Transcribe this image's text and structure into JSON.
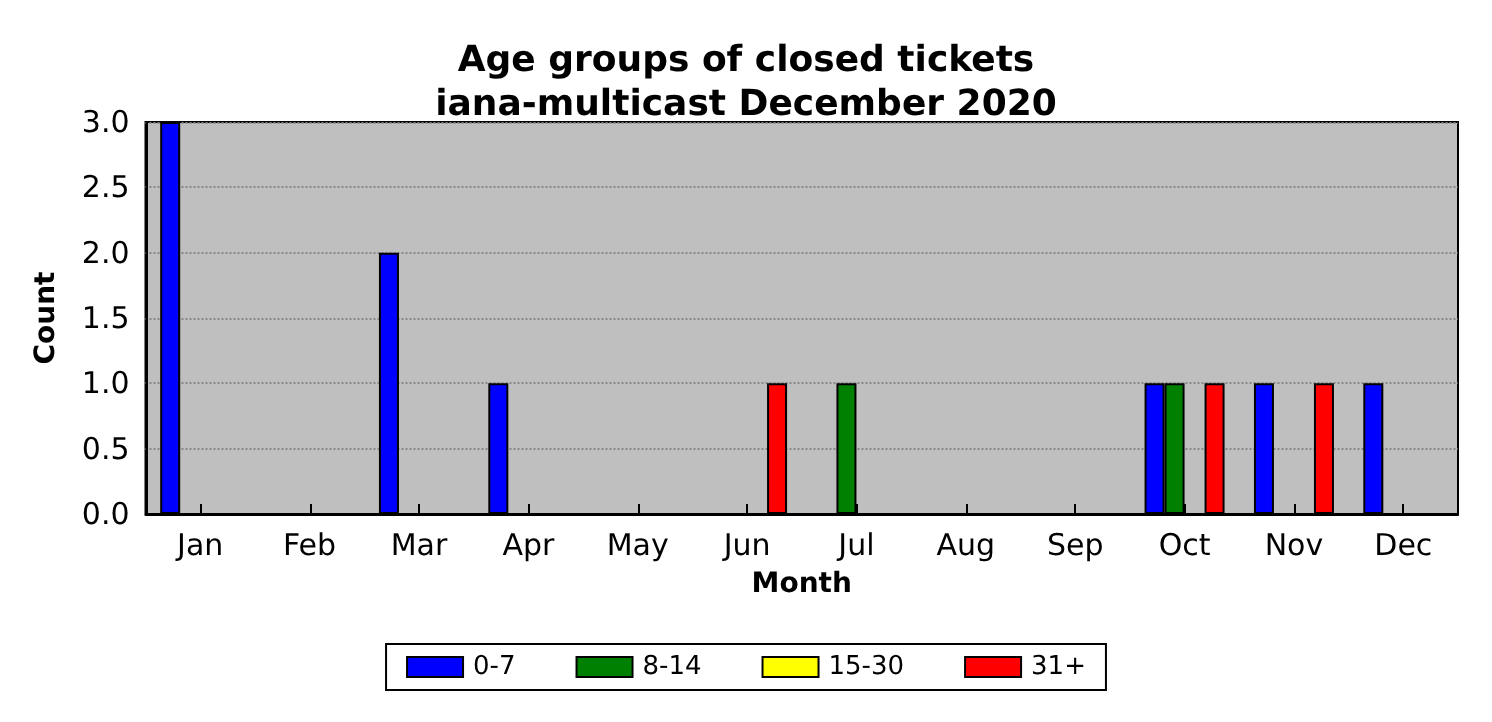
{
  "chart_data": {
    "type": "bar",
    "title": "Age groups of closed tickets\niana-multicast December 2020",
    "xlabel": "Month",
    "ylabel": "Count",
    "categories": [
      "Jan",
      "Feb",
      "Mar",
      "Apr",
      "May",
      "Jun",
      "Jul",
      "Aug",
      "Sep",
      "Oct",
      "Nov",
      "Dec"
    ],
    "series": [
      {
        "name": "0-7",
        "color": "#0000ff",
        "values": [
          3,
          0,
          2,
          1,
          0,
          0,
          0,
          0,
          0,
          1,
          1,
          1
        ]
      },
      {
        "name": "8-14",
        "color": "#008000",
        "values": [
          0,
          0,
          0,
          0,
          0,
          0,
          1,
          0,
          0,
          1,
          0,
          0
        ]
      },
      {
        "name": "15-30",
        "color": "#ffff00",
        "values": [
          0,
          0,
          0,
          0,
          0,
          0,
          0,
          0,
          0,
          0,
          0,
          0
        ]
      },
      {
        "name": "31+",
        "color": "#ff0000",
        "values": [
          0,
          0,
          0,
          0,
          0,
          1,
          0,
          0,
          0,
          1,
          1,
          0
        ]
      }
    ],
    "ylim": [
      0,
      3
    ],
    "yticks": [
      {
        "value": 0,
        "label": "0.0"
      },
      0.5,
      {
        "value": 1,
        "label": "1.0"
      },
      1.5,
      {
        "value": 2,
        "label": "2.0"
      },
      2.5,
      {
        "value": 3,
        "label": "3.0"
      }
    ],
    "grid": "y",
    "legend": "bottom"
  }
}
